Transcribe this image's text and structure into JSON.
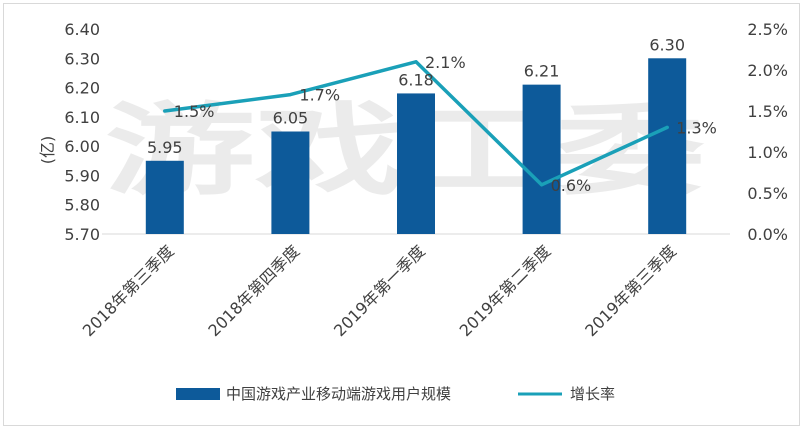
{
  "watermark": "游戏工委",
  "chart_data": {
    "type": "bar",
    "categories": [
      "2018年第三季度",
      "2018年第四季度",
      "2019年第一季度",
      "2019年第二季度",
      "2019年第三季度"
    ],
    "series": [
      {
        "name": "中国游戏产业移动端游戏用户规模",
        "type": "bar",
        "axis": "left",
        "values": [
          5.95,
          6.05,
          6.18,
          6.21,
          6.3
        ],
        "value_labels": [
          "5.95",
          "6.05",
          "6.18",
          "6.21",
          "6.30"
        ],
        "color": "#0d5a9a"
      },
      {
        "name": "增长率",
        "type": "line",
        "axis": "right",
        "values": [
          1.5,
          1.7,
          2.1,
          0.6,
          1.3
        ],
        "value_labels": [
          "1.5%",
          "1.7%",
          "2.1%",
          "0.6%",
          "1.3%"
        ],
        "color": "#1aa0b8"
      }
    ],
    "ylabel": "(亿)",
    "ylim": [
      5.7,
      6.4
    ],
    "yticks": [
      "5.70",
      "5.80",
      "5.90",
      "6.00",
      "6.10",
      "6.20",
      "6.30",
      "6.40"
    ],
    "y2lim": [
      0,
      2.5
    ],
    "y2ticks": [
      "0.0%",
      "0.5%",
      "1.0%",
      "1.5%",
      "2.0%",
      "2.5%"
    ],
    "grid": false,
    "legend": "bottom"
  }
}
